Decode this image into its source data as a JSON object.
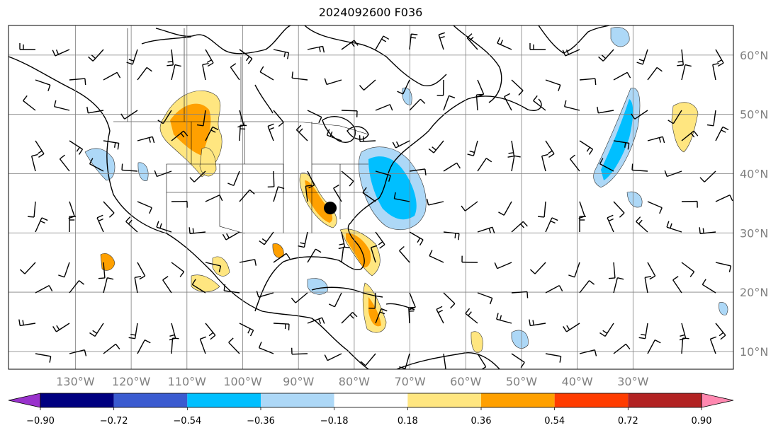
{
  "title": "2024092600 F036",
  "map": {
    "lon_range": [
      -142,
      -12
    ],
    "lat_range": [
      7,
      65
    ],
    "lon_ticks": [
      {
        "value": -130,
        "label": "130°W"
      },
      {
        "value": -120,
        "label": "120°W"
      },
      {
        "value": -110,
        "label": "110°W"
      },
      {
        "value": -100,
        "label": "100°W"
      },
      {
        "value": -90,
        "label": "90°W"
      },
      {
        "value": -80,
        "label": "80°W"
      },
      {
        "value": -70,
        "label": "70°W"
      },
      {
        "value": -60,
        "label": "60°W"
      },
      {
        "value": -50,
        "label": "50°W"
      },
      {
        "value": -40,
        "label": "40°W"
      },
      {
        "value": -30,
        "label": "30°W"
      }
    ],
    "lat_ticks": [
      {
        "value": 60,
        "label": "60°N"
      },
      {
        "value": 50,
        "label": "50°N"
      },
      {
        "value": 40,
        "label": "40°N"
      },
      {
        "value": 30,
        "label": "30°N"
      },
      {
        "value": 20,
        "label": "20°N"
      },
      {
        "value": 10,
        "label": "10°N"
      }
    ],
    "grid": true,
    "marker": {
      "lon": -84.3,
      "lat": 34.2
    },
    "colors": {
      "land_line": "#000000",
      "grid": "#808080"
    }
  },
  "colorbar": {
    "orientation": "horizontal",
    "extend": "both",
    "bounds": [
      -0.9,
      -0.72,
      -0.54,
      -0.36,
      -0.18,
      0.18,
      0.36,
      0.54,
      0.72,
      0.9
    ],
    "labels": [
      "−0.90",
      "−0.72",
      "−0.54",
      "−0.36",
      "−0.18",
      "0.18",
      "0.36",
      "0.54",
      "0.72",
      "0.90"
    ],
    "colors": [
      "#9932cc",
      "#000080",
      "#3a5bd0",
      "#00bfff",
      "#add8f7",
      "#ffffff",
      "#ffe680",
      "#ffa000",
      "#ff3c00",
      "#b22222",
      "#ff88b0"
    ]
  }
}
